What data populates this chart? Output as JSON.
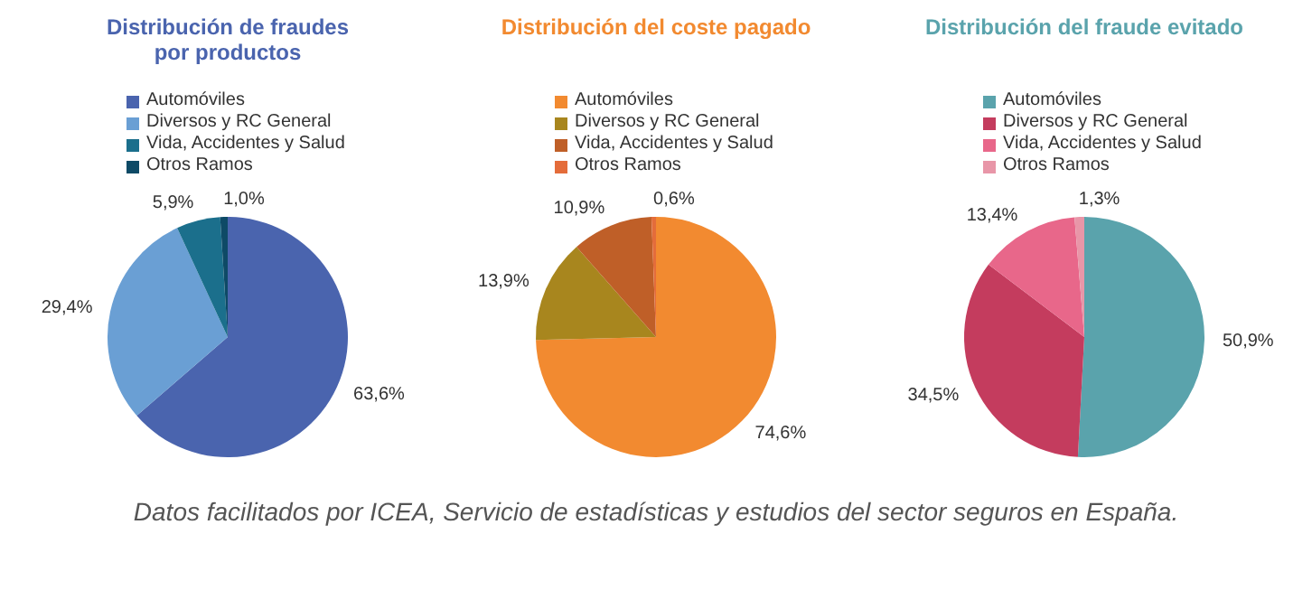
{
  "chart_data": [
    {
      "type": "pie",
      "title": "Distribución de fraudes\npor productos",
      "categories": [
        "Automóviles",
        "Diversos y RC General",
        "Vida, Accidentes y Salud",
        "Otros Ramos"
      ],
      "values": [
        63.6,
        29.4,
        5.9,
        1.0
      ],
      "colors": [
        "#4a64ae",
        "#6a9fd4",
        "#1b6f8c",
        "#0e4a66"
      ],
      "value_labels": [
        "63,6%",
        "29,4%",
        "5,9%",
        "1,0%"
      ],
      "legend": "top left",
      "annotations": [
        "Datos facilitados por ICEA, Servicio de estadísticas y estudios del sector seguros en España."
      ]
    },
    {
      "type": "pie",
      "title": "Distribución del coste pagado",
      "categories": [
        "Automóviles",
        "Diversos y RC General",
        "Vida, Accidentes y Salud",
        "Otros Ramos"
      ],
      "values": [
        74.6,
        13.9,
        10.9,
        0.6
      ],
      "colors": [
        "#f28a30",
        "#a8861e",
        "#bf5f28",
        "#e46c3a"
      ],
      "value_labels": [
        "74,6%",
        "13,9%",
        "10,9%",
        "0,6%"
      ],
      "legend": "top left"
    },
    {
      "type": "pie",
      "title": "Distribución del fraude evitado",
      "categories": [
        "Automóviles",
        "Diversos y RC General",
        "Vida, Accidentes y Salud",
        "Otros Ramos"
      ],
      "values": [
        50.9,
        34.5,
        13.4,
        1.3
      ],
      "colors": [
        "#5aa3ac",
        "#c43c5e",
        "#e8678a",
        "#e896a8"
      ],
      "value_labels": [
        "50,9%",
        "34,5%",
        "13,4%",
        "1,3%"
      ],
      "legend": "top left"
    }
  ]
}
